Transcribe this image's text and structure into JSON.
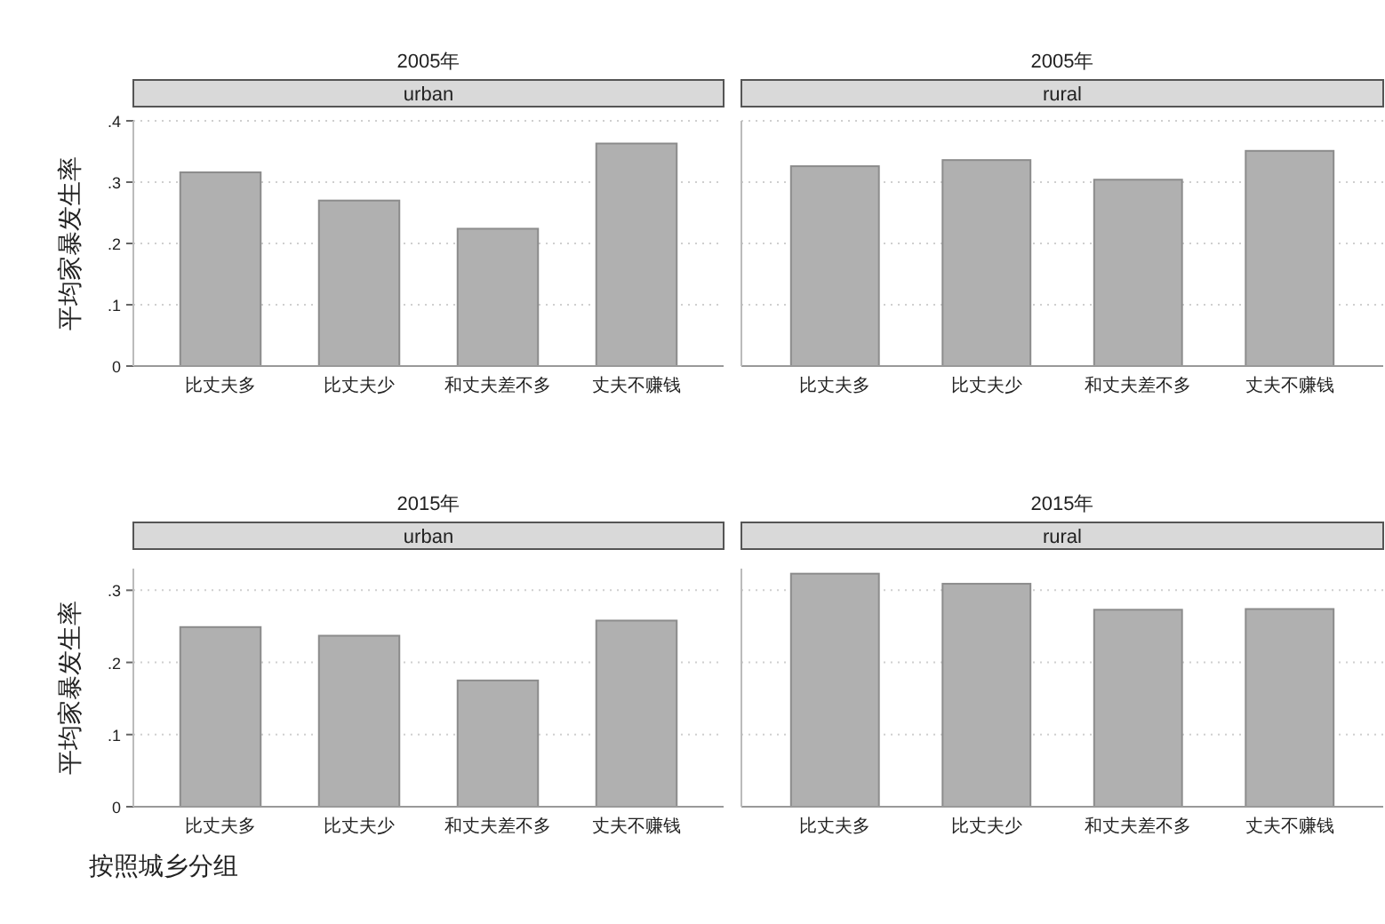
{
  "chart_data": [
    {
      "type": "bar",
      "title": "2005年",
      "subtitle": "urban",
      "ylabel": "平均家暴发生率",
      "categories": [
        "比丈夫多",
        "比丈夫少",
        "和丈夫差不多",
        "丈夫不赚钱"
      ],
      "values": [
        0.316,
        0.27,
        0.224,
        0.363
      ],
      "color": "#b0b0b0",
      "ylim": [
        0,
        0.4
      ],
      "yticks": [
        {
          "value": 0,
          "label": "0"
        },
        {
          "value": 0.1,
          "label": ".1"
        },
        {
          "value": 0.2,
          "label": ".2"
        },
        {
          "value": 0.3,
          "label": ".3"
        },
        {
          "value": 0.4,
          "label": ".4"
        }
      ],
      "grid": "y"
    },
    {
      "type": "bar",
      "title": "2005年",
      "subtitle": "rural",
      "categories": [
        "比丈夫多",
        "比丈夫少",
        "和丈夫差不多",
        "丈夫不赚钱"
      ],
      "values": [
        0.326,
        0.336,
        0.304,
        0.351
      ],
      "color": "#b0b0b0",
      "ylim": [
        0,
        0.4
      ],
      "yticks": [
        0,
        0.1,
        0.2,
        0.3,
        0.4
      ],
      "tick_labels": "x",
      "grid": "y"
    },
    {
      "type": "bar",
      "title": "2015年",
      "subtitle": "urban",
      "ylabel": "平均家暴发生率",
      "xlabel": "按照城乡分组",
      "categories": [
        "比丈夫多",
        "比丈夫少",
        "和丈夫差不多",
        "丈夫不赚钱"
      ],
      "values": [
        0.249,
        0.237,
        0.175,
        0.258
      ],
      "color": "#b0b0b0",
      "ylim": [
        0,
        0.33
      ],
      "yticks": [
        {
          "value": 0,
          "label": "0"
        },
        {
          "value": 0.1,
          "label": ".1"
        },
        {
          "value": 0.2,
          "label": ".2"
        },
        {
          "value": 0.3,
          "label": ".3"
        }
      ],
      "grid": "y"
    },
    {
      "type": "bar",
      "title": "2015年",
      "subtitle": "rural",
      "categories": [
        "比丈夫多",
        "比丈夫少",
        "和丈夫差不多",
        "丈夫不赚钱"
      ],
      "values": [
        0.323,
        0.309,
        0.273,
        0.274
      ],
      "color": "#b0b0b0",
      "ylim": [
        0,
        0.33
      ],
      "yticks": [
        0,
        0.1,
        0.2,
        0.3
      ],
      "tick_labels": "x",
      "grid": "y"
    }
  ]
}
